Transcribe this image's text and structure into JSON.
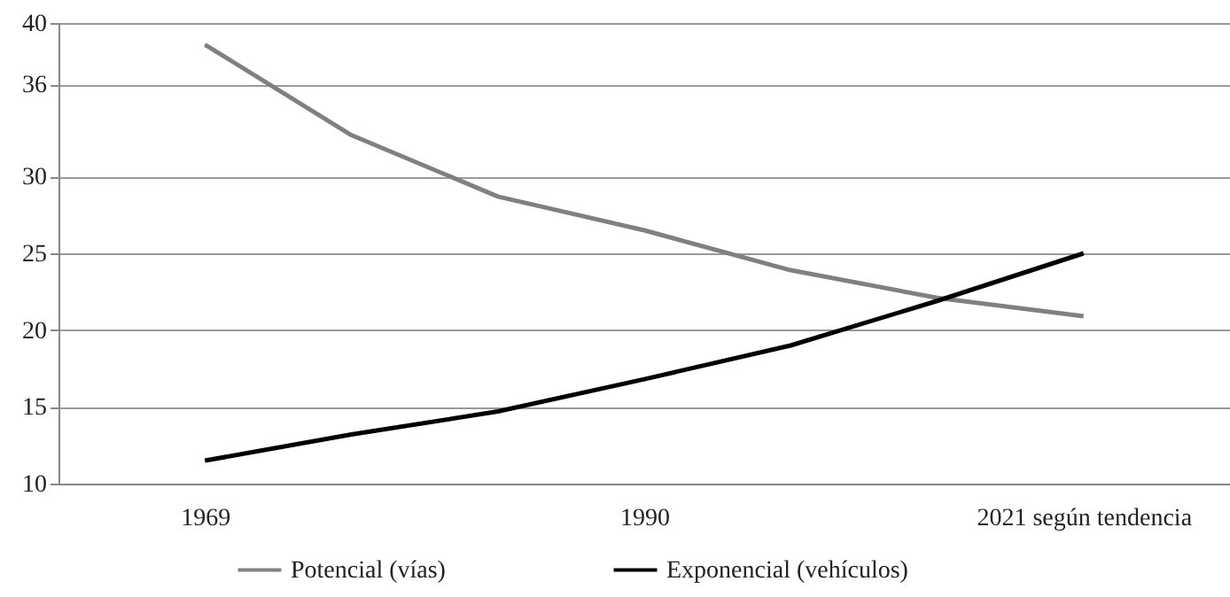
{
  "chart_data": {
    "type": "line",
    "categories": [
      "1969",
      null,
      null,
      "1990",
      null,
      null,
      "2021 según tendencia"
    ],
    "series": [
      {
        "name": "Potencial (vías)",
        "color": "#808080",
        "values": [
          38.6,
          32.7,
          28.7,
          26.5,
          23.9,
          22.1,
          20.9
        ]
      },
      {
        "name": "Exponencial (vehículos)",
        "color": "#000000",
        "values": [
          11.5,
          13.2,
          14.7,
          16.8,
          19.0,
          21.9,
          25.0
        ]
      }
    ],
    "ylim": [
      10,
      40
    ],
    "yticks": [
      10,
      15,
      20,
      25,
      30,
      36,
      40
    ],
    "grid": "y",
    "legend": "bottom",
    "marker": "none",
    "line_style": "solid"
  }
}
